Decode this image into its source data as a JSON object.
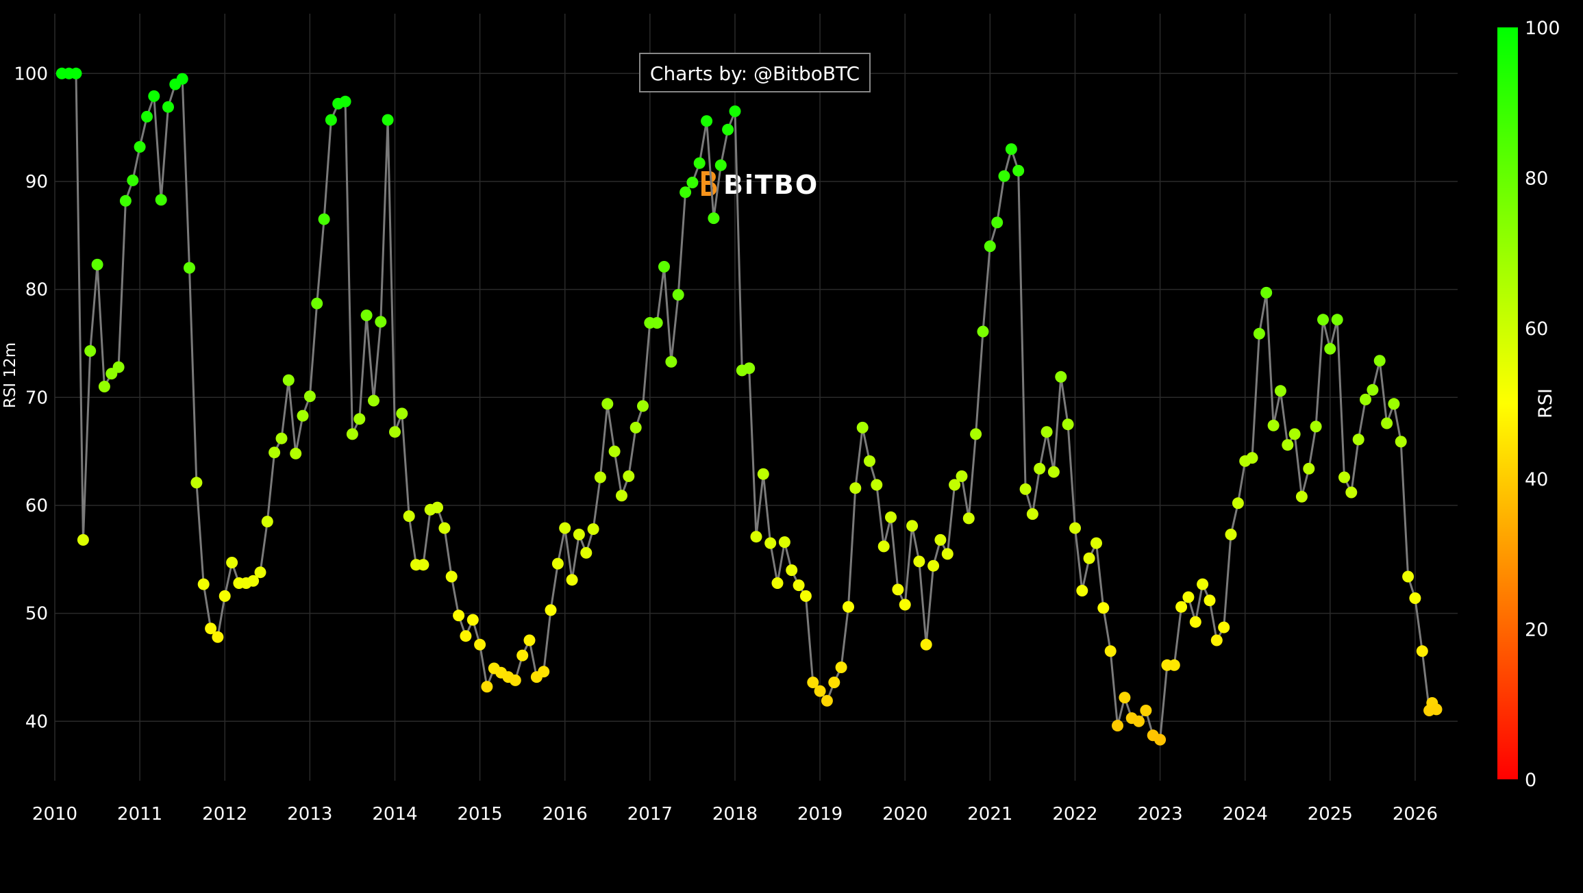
{
  "credit": "Charts by: @BitboBTC",
  "watermark": "BiTBO",
  "colors": {
    "background": "#000000",
    "grid": "#2a2a2a",
    "line": "#7a7a7a",
    "low": "#ff0000",
    "mid": "#ffff00",
    "high": "#00ff00"
  },
  "chart_data": {
    "type": "scatter",
    "ylabel": "RSI 12m",
    "xlabel": "",
    "xlim": [
      2010.0,
      2026.5
    ],
    "ylim": [
      34.5,
      103
    ],
    "x_ticks": [
      "2010",
      "2011",
      "2012",
      "2013",
      "2014",
      "2015",
      "2016",
      "2017",
      "2018",
      "2019",
      "2020",
      "2021",
      "2022",
      "2023",
      "2024",
      "2025",
      "2026"
    ],
    "y_ticks": [
      "40",
      "50",
      "60",
      "70",
      "80",
      "90",
      "100"
    ],
    "grid": true,
    "lines_and_markers": true,
    "colorbar": {
      "title": "RSI",
      "range": [
        0,
        100
      ],
      "ticks": [
        "0",
        "20",
        "40",
        "60",
        "80",
        "100"
      ],
      "colors": [
        "#ff0000",
        "#ffff00",
        "#00ff00"
      ]
    },
    "x": [
      2010.0833,
      2010.1667,
      2010.25,
      2010.3333,
      2010.4167,
      2010.5,
      2010.5833,
      2010.6667,
      2010.75,
      2010.8333,
      2010.9167,
      2011.0,
      2011.0833,
      2011.1667,
      2011.25,
      2011.3333,
      2011.4167,
      2011.5,
      2011.5833,
      2011.6667,
      2011.75,
      2011.8333,
      2011.9167,
      2012.0,
      2012.0833,
      2012.1667,
      2012.25,
      2012.3333,
      2012.4167,
      2012.5,
      2012.5833,
      2012.6667,
      2012.75,
      2012.8333,
      2012.9167,
      2013.0,
      2013.0833,
      2013.1667,
      2013.25,
      2013.3333,
      2013.4167,
      2013.5,
      2013.5833,
      2013.6667,
      2013.75,
      2013.8333,
      2013.9167,
      2014.0,
      2014.0833,
      2014.1667,
      2014.25,
      2014.3333,
      2014.4167,
      2014.5,
      2014.5833,
      2014.6667,
      2014.75,
      2014.8333,
      2014.9167,
      2015.0,
      2015.0833,
      2015.1667,
      2015.25,
      2015.3333,
      2015.4167,
      2015.5,
      2015.5833,
      2015.6667,
      2015.75,
      2015.8333,
      2015.9167,
      2016.0,
      2016.0833,
      2016.1667,
      2016.25,
      2016.3333,
      2016.4167,
      2016.5,
      2016.5833,
      2016.6667,
      2016.75,
      2016.8333,
      2016.9167,
      2017.0,
      2017.0833,
      2017.1667,
      2017.25,
      2017.3333,
      2017.4167,
      2017.5,
      2017.5833,
      2017.6667,
      2017.75,
      2017.8333,
      2017.9167,
      2018.0,
      2018.0833,
      2018.1667,
      2018.25,
      2018.3333,
      2018.4167,
      2018.5,
      2018.5833,
      2018.6667,
      2018.75,
      2018.8333,
      2018.9167,
      2019.0,
      2019.0833,
      2019.1667,
      2019.25,
      2019.3333,
      2019.4167,
      2019.5,
      2019.5833,
      2019.6667,
      2019.75,
      2019.8333,
      2019.9167,
      2020.0,
      2020.0833,
      2020.1667,
      2020.25,
      2020.3333,
      2020.4167,
      2020.5,
      2020.5833,
      2020.6667,
      2020.75,
      2020.8333,
      2020.9167,
      2021.0,
      2021.0833,
      2021.1667,
      2021.25,
      2021.3333,
      2021.4167,
      2021.5,
      2021.5833,
      2021.6667,
      2021.75,
      2021.8333,
      2021.9167,
      2022.0,
      2022.0833,
      2022.1667,
      2022.25,
      2022.3333,
      2022.4167,
      2022.5,
      2022.5833,
      2022.6667,
      2022.75,
      2022.8333,
      2022.9167,
      2023.0,
      2023.0833,
      2023.1667,
      2023.25,
      2023.3333,
      2023.4167,
      2023.5,
      2023.5833,
      2023.6667,
      2023.75,
      2023.8333,
      2023.9167,
      2024.0,
      2024.0833,
      2024.1667,
      2024.25,
      2024.3333,
      2024.4167,
      2024.5,
      2024.5833,
      2024.6667,
      2024.75,
      2024.8333,
      2024.9167,
      2025.0,
      2025.0833,
      2025.1667,
      2025.25,
      2025.3333,
      2025.4167,
      2025.5,
      2025.5833,
      2025.6667,
      2025.75,
      2025.8333,
      2025.9167,
      2026.0,
      2026.0833,
      2026.1667,
      2026.2,
      2026.25
    ],
    "y": [
      100,
      100,
      100,
      56.8,
      74.3,
      82.3,
      71.0,
      72.2,
      72.8,
      88.2,
      90.1,
      93.2,
      96.0,
      97.9,
      88.3,
      96.9,
      99.0,
      99.5,
      82.0,
      62.1,
      52.7,
      48.6,
      47.8,
      51.6,
      54.7,
      52.8,
      52.8,
      53.0,
      53.8,
      58.5,
      64.9,
      66.2,
      71.6,
      64.8,
      68.3,
      70.1,
      78.7,
      86.5,
      95.7,
      97.2,
      97.4,
      66.6,
      68.0,
      77.6,
      69.7,
      77.0,
      95.7,
      66.8,
      68.5,
      59.0,
      54.5,
      54.5,
      59.6,
      59.8,
      57.9,
      53.4,
      49.8,
      47.9,
      49.4,
      47.1,
      43.2,
      44.9,
      44.5,
      44.1,
      43.8,
      46.1,
      47.5,
      44.1,
      44.6,
      50.3,
      54.6,
      57.9,
      53.1,
      57.3,
      55.6,
      57.8,
      62.6,
      69.4,
      65.0,
      60.9,
      62.7,
      67.2,
      69.2,
      76.9,
      76.9,
      82.1,
      73.3,
      79.5,
      89.0,
      89.9,
      91.7,
      95.6,
      86.6,
      91.5,
      94.8,
      96.5,
      72.5,
      72.7,
      57.1,
      62.9,
      56.5,
      52.8,
      56.6,
      54.0,
      52.6,
      51.6,
      43.6,
      42.8,
      41.9,
      43.6,
      45.0,
      50.6,
      61.6,
      67.2,
      64.1,
      61.9,
      56.2,
      58.9,
      52.2,
      50.8,
      58.1,
      54.8,
      47.1,
      54.4,
      56.8,
      55.5,
      61.9,
      62.7,
      58.8,
      66.6,
      76.1,
      84.0,
      86.2,
      90.5,
      93.0,
      91.0,
      61.5,
      59.2,
      63.4,
      66.8,
      63.1,
      71.9,
      67.5,
      57.9,
      52.1,
      55.1,
      56.5,
      50.5,
      46.5,
      39.6,
      42.2,
      40.3,
      40.0,
      41.0,
      38.7,
      38.3,
      45.2,
      45.2,
      50.6,
      51.5,
      49.2,
      52.7,
      51.2,
      47.5,
      48.7,
      57.3,
      60.2,
      64.1,
      64.4,
      75.9,
      79.7,
      67.4,
      70.6,
      65.6,
      66.6,
      60.8,
      63.4,
      67.3,
      77.2,
      74.5,
      77.2,
      62.6,
      61.2,
      66.1,
      69.8,
      70.7,
      73.4,
      67.6,
      69.4,
      65.9,
      53.4,
      51.4,
      46.5,
      41.0,
      41.7,
      41.1
    ]
  }
}
